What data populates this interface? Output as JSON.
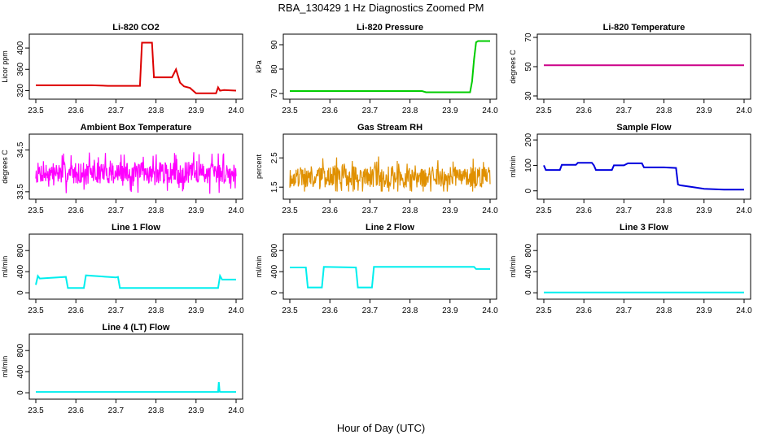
{
  "figure": {
    "title": "RBA_130429  1 Hz Diagnostics Zoomed PM",
    "xlabel": "Hour of Day (UTC)"
  },
  "chart_data": [
    {
      "type": "line",
      "title": "Li-820 CO2",
      "ylabel": "Licor ppm",
      "color": "#dd0000",
      "xlim": [
        23.5,
        24.0
      ],
      "ylim": [
        310,
        420
      ],
      "xticks": [
        "23.5",
        "23.6",
        "23.7",
        "23.8",
        "23.9",
        "24.0"
      ],
      "yticks": [
        "320",
        "360",
        "400"
      ],
      "series": [
        {
          "x": [
            23.5,
            23.52,
            23.56,
            23.6,
            23.64,
            23.68,
            23.72,
            23.76,
            23.765,
            23.79,
            23.795,
            23.8,
            23.83,
            23.84,
            23.85,
            23.86,
            23.87,
            23.885,
            23.9,
            23.905,
            23.91,
            23.93,
            23.95,
            23.955,
            23.96,
            23.97,
            24.0
          ],
          "y": [
            330,
            330,
            330,
            330,
            330,
            329,
            329,
            329,
            410,
            410,
            345,
            345,
            345,
            345,
            360,
            335,
            328,
            325,
            315,
            315,
            315,
            315,
            315,
            326,
            320,
            321,
            320
          ]
        }
      ]
    },
    {
      "type": "line",
      "title": "Li-820 Pressure",
      "ylabel": "kPa",
      "color": "#00cc00",
      "xlim": [
        23.5,
        24.0
      ],
      "ylim": [
        69,
        93
      ],
      "xticks": [
        "23.5",
        "23.6",
        "23.7",
        "23.8",
        "23.9",
        "24.0"
      ],
      "yticks": [
        "70",
        "80",
        "90"
      ],
      "series": [
        {
          "x": [
            23.5,
            23.6,
            23.7,
            23.83,
            23.84,
            23.9,
            23.95,
            23.955,
            23.96,
            23.965,
            23.97,
            24.0
          ],
          "y": [
            71,
            71,
            71,
            71,
            70.5,
            70.5,
            70.5,
            75,
            84,
            91,
            91.5,
            91.5
          ]
        }
      ]
    },
    {
      "type": "line",
      "title": "Li-820 Temperature",
      "ylabel": "degrees C",
      "color": "#cc0088",
      "xlim": [
        23.5,
        24.0
      ],
      "ylim": [
        30,
        70
      ],
      "xticks": [
        "23.5",
        "23.6",
        "23.7",
        "23.8",
        "23.9",
        "24.0"
      ],
      "yticks": [
        "30",
        "50",
        "70"
      ],
      "series": [
        {
          "x": [
            23.5,
            24.0
          ],
          "y": [
            51,
            51
          ]
        }
      ]
    },
    {
      "type": "line",
      "title": "Ambient Box Temperature",
      "ylabel": "degrees C",
      "color": "#ff00ff",
      "xlim": [
        23.5,
        24.0
      ],
      "ylim": [
        33.4,
        34.8
      ],
      "xticks": [
        "23.5",
        "23.6",
        "23.7",
        "23.8",
        "23.9",
        "24.0"
      ],
      "yticks": [
        "33.5",
        "34.5"
      ],
      "noise": {
        "base": 33.95,
        "amp": 0.32,
        "lo": 33.45,
        "hi": 34.7,
        "n": 450,
        "seed": 7
      }
    },
    {
      "type": "line",
      "title": "Gas Stream RH",
      "ylabel": "percent",
      "color": "#e09000",
      "xlim": [
        23.5,
        24.0
      ],
      "ylim": [
        1.2,
        3.2
      ],
      "xticks": [
        "23.5",
        "23.6",
        "23.7",
        "23.8",
        "23.9",
        "24.0"
      ],
      "yticks": [
        "1.5",
        "2.5"
      ],
      "noise": {
        "base": 1.85,
        "amp": 0.45,
        "lo": 1.35,
        "hi": 3.05,
        "n": 450,
        "seed": 19
      }
    },
    {
      "type": "line",
      "title": "Sample Flow",
      "ylabel": "ml/min",
      "color": "#0000dd",
      "xlim": [
        23.5,
        24.0
      ],
      "ylim": [
        -20,
        210
      ],
      "xticks": [
        "23.5",
        "23.6",
        "23.7",
        "23.8",
        "23.9",
        "24.0"
      ],
      "yticks": [
        "0",
        "100",
        "200"
      ],
      "series": [
        {
          "x": [
            23.5,
            23.505,
            23.54,
            23.545,
            23.58,
            23.585,
            23.62,
            23.625,
            23.63,
            23.635,
            23.67,
            23.675,
            23.7,
            23.71,
            23.745,
            23.75,
            23.8,
            23.83,
            23.835,
            23.84,
            23.87,
            23.9,
            23.95,
            24.0
          ],
          "y": [
            100,
            82,
            82,
            102,
            102,
            110,
            110,
            100,
            82,
            82,
            82,
            100,
            100,
            108,
            108,
            92,
            92,
            90,
            25,
            22,
            15,
            8,
            5,
            5
          ]
        }
      ]
    },
    {
      "type": "line",
      "title": "Line 1 Flow",
      "ylabel": "ml/min",
      "color": "#00eeee",
      "xlim": [
        23.5,
        24.0
      ],
      "ylim": [
        -60,
        1050
      ],
      "xticks": [
        "23.5",
        "23.6",
        "23.7",
        "23.8",
        "23.9",
        "24.0"
      ],
      "yticks": [
        "0",
        "400",
        "800"
      ],
      "series": [
        {
          "x": [
            23.5,
            23.505,
            23.51,
            23.575,
            23.58,
            23.62,
            23.625,
            23.7,
            23.705,
            23.71,
            23.8,
            23.9,
            23.955,
            23.96,
            23.965,
            24.0
          ],
          "y": [
            150,
            320,
            270,
            300,
            90,
            90,
            330,
            290,
            300,
            90,
            90,
            90,
            90,
            320,
            250,
            250
          ]
        }
      ]
    },
    {
      "type": "line",
      "title": "Line 2 Flow",
      "ylabel": "ml/min",
      "color": "#00eeee",
      "xlim": [
        23.5,
        24.0
      ],
      "ylim": [
        -60,
        1050
      ],
      "xticks": [
        "23.5",
        "23.6",
        "23.7",
        "23.8",
        "23.9",
        "24.0"
      ],
      "yticks": [
        "0",
        "400",
        "800"
      ],
      "series": [
        {
          "x": [
            23.5,
            23.54,
            23.545,
            23.58,
            23.585,
            23.665,
            23.67,
            23.705,
            23.71,
            23.96,
            23.965,
            24.0
          ],
          "y": [
            480,
            480,
            100,
            100,
            490,
            480,
            100,
            100,
            490,
            490,
            450,
            450
          ]
        }
      ]
    },
    {
      "type": "line",
      "title": "Line 3 Flow",
      "ylabel": "ml/min",
      "color": "#00eeee",
      "xlim": [
        23.5,
        24.0
      ],
      "ylim": [
        -60,
        1050
      ],
      "xticks": [
        "23.5",
        "23.6",
        "23.7",
        "23.8",
        "23.9",
        "24.0"
      ],
      "yticks": [
        "0",
        "400",
        "800"
      ],
      "series": [
        {
          "x": [
            23.5,
            24.0
          ],
          "y": [
            5,
            5
          ]
        }
      ]
    },
    {
      "type": "line",
      "title": "Line 4 (LT) Flow",
      "ylabel": "ml/min",
      "color": "#00eeee",
      "xlim": [
        23.5,
        24.0
      ],
      "ylim": [
        -60,
        1050
      ],
      "xticks": [
        "23.5",
        "23.6",
        "23.7",
        "23.8",
        "23.9",
        "24.0"
      ],
      "yticks": [
        "0",
        "400",
        "800"
      ],
      "series": [
        {
          "x": [
            23.5,
            23.955,
            23.957,
            23.959,
            23.962,
            24.0
          ],
          "y": [
            15,
            15,
            200,
            20,
            15,
            15
          ]
        }
      ]
    }
  ]
}
